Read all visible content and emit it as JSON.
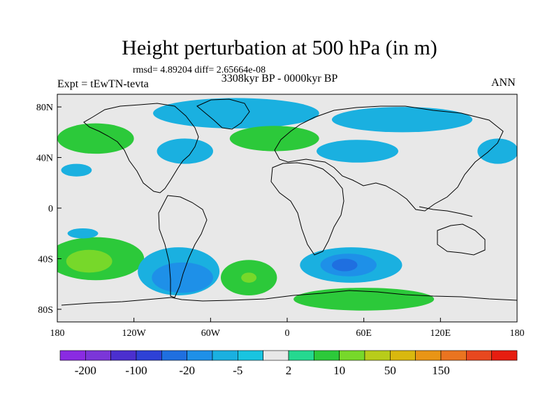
{
  "figure": {
    "title": "Height perturbation at 500 hPa (in m)",
    "stats": "rmsd= 4.89204 diff= 2.65664e-08",
    "experiment": "Expt = tEwTN-tevta",
    "period": "3308kyr BP - 0000kyr BP",
    "season": "ANN"
  },
  "axes": {
    "lon_ticks": [
      {
        "value": -180,
        "label": "180"
      },
      {
        "value": -120,
        "label": "120W"
      },
      {
        "value": -60,
        "label": "60W"
      },
      {
        "value": 0,
        "label": "0"
      },
      {
        "value": 60,
        "label": "60E"
      },
      {
        "value": 120,
        "label": "120E"
      },
      {
        "value": 180,
        "label": "180"
      }
    ],
    "lat_ticks": [
      {
        "value": 80,
        "label": "80N"
      },
      {
        "value": 40,
        "label": "40N"
      },
      {
        "value": 0,
        "label": "0"
      },
      {
        "value": -40,
        "label": "40S"
      },
      {
        "value": -80,
        "label": "80S"
      }
    ],
    "lon_range": [
      -180,
      180
    ],
    "lat_range": [
      -90,
      90
    ]
  },
  "colorbar": {
    "colors": [
      "#8a2be2",
      "#7b36d8",
      "#4b2fcf",
      "#2e41d6",
      "#1f6fe0",
      "#1e90e8",
      "#1ab0e0",
      "#19c4e0",
      "#e8e8e8",
      "#25d890",
      "#2cc93a",
      "#77d82a",
      "#b8cc1a",
      "#d9b80e",
      "#e99515",
      "#ea7420",
      "#e8481f",
      "#e61d10"
    ],
    "labels": [
      {
        "after_box": 1,
        "text": "-200"
      },
      {
        "after_box": 3,
        "text": "-100"
      },
      {
        "after_box": 5,
        "text": "-20"
      },
      {
        "after_box": 7,
        "text": "-5"
      },
      {
        "after_box": 9,
        "text": "2"
      },
      {
        "after_box": 11,
        "text": "10"
      },
      {
        "after_box": 13,
        "text": "50"
      },
      {
        "after_box": 15,
        "text": "150"
      }
    ]
  },
  "field": {
    "background_color": "#e8e8e8",
    "regions": [
      {
        "name": "south-pacific-high",
        "color": "#2cc93a",
        "lon": -150,
        "lat": -40,
        "rlon": 38,
        "rlat": 17
      },
      {
        "name": "south-pacific-core",
        "color": "#77d82a",
        "lon": -155,
        "lat": -42,
        "rlon": 18,
        "rlat": 9
      },
      {
        "name": "south-america-low",
        "color": "#1ab0e0",
        "lon": -85,
        "lat": -50,
        "rlon": 32,
        "rlat": 19
      },
      {
        "name": "south-america-low-core",
        "color": "#1e90e8",
        "lon": -82,
        "lat": -55,
        "rlon": 24,
        "rlat": 12
      },
      {
        "name": "south-atlantic-high",
        "color": "#2cc93a",
        "lon": -30,
        "lat": -55,
        "rlon": 22,
        "rlat": 14
      },
      {
        "name": "south-atlantic-core",
        "color": "#77d82a",
        "lon": -30,
        "lat": -55,
        "rlon": 6,
        "rlat": 4
      },
      {
        "name": "indian-ocean-low",
        "color": "#1ab0e0",
        "lon": 50,
        "lat": -45,
        "rlon": 40,
        "rlat": 14
      },
      {
        "name": "indian-ocean-low-core",
        "color": "#1e90e8",
        "lon": 48,
        "lat": -45,
        "rlon": 22,
        "rlat": 9
      },
      {
        "name": "indian-ocean-low-center",
        "color": "#1f6fe0",
        "lon": 45,
        "lat": -45,
        "rlon": 10,
        "rlat": 5
      },
      {
        "name": "antarctic-ridge",
        "color": "#2cc93a",
        "lon": 60,
        "lat": -72,
        "rlon": 55,
        "rlat": 9
      },
      {
        "name": "arctic-low",
        "color": "#1ab0e0",
        "lon": -40,
        "lat": 75,
        "rlon": 65,
        "rlat": 12
      },
      {
        "name": "siberia-low",
        "color": "#1ab0e0",
        "lon": 90,
        "lat": 70,
        "rlon": 55,
        "rlat": 10
      },
      {
        "name": "atlantic-ridge",
        "color": "#2cc93a",
        "lon": -10,
        "lat": 55,
        "rlon": 35,
        "rlat": 10
      },
      {
        "name": "central-asia-low",
        "color": "#1ab0e0",
        "lon": 55,
        "lat": 45,
        "rlon": 32,
        "rlat": 9
      },
      {
        "name": "north-pacific-high",
        "color": "#2cc93a",
        "lon": -150,
        "lat": 55,
        "rlon": 30,
        "rlat": 12
      },
      {
        "name": "north-america-low",
        "color": "#1ab0e0",
        "lon": -80,
        "lat": 45,
        "rlon": 22,
        "rlat": 10
      },
      {
        "name": "west-pacific-low",
        "color": "#1ab0e0",
        "lon": 165,
        "lat": 45,
        "rlon": 16,
        "rlat": 10
      },
      {
        "name": "east-pacific-low",
        "color": "#1ab0e0",
        "lon": -165,
        "lat": 30,
        "rlon": 12,
        "rlat": 5
      },
      {
        "name": "tropical-pacific-low",
        "color": "#1ab0e0",
        "lon": -160,
        "lat": -20,
        "rlon": 12,
        "rlat": 4
      }
    ]
  }
}
